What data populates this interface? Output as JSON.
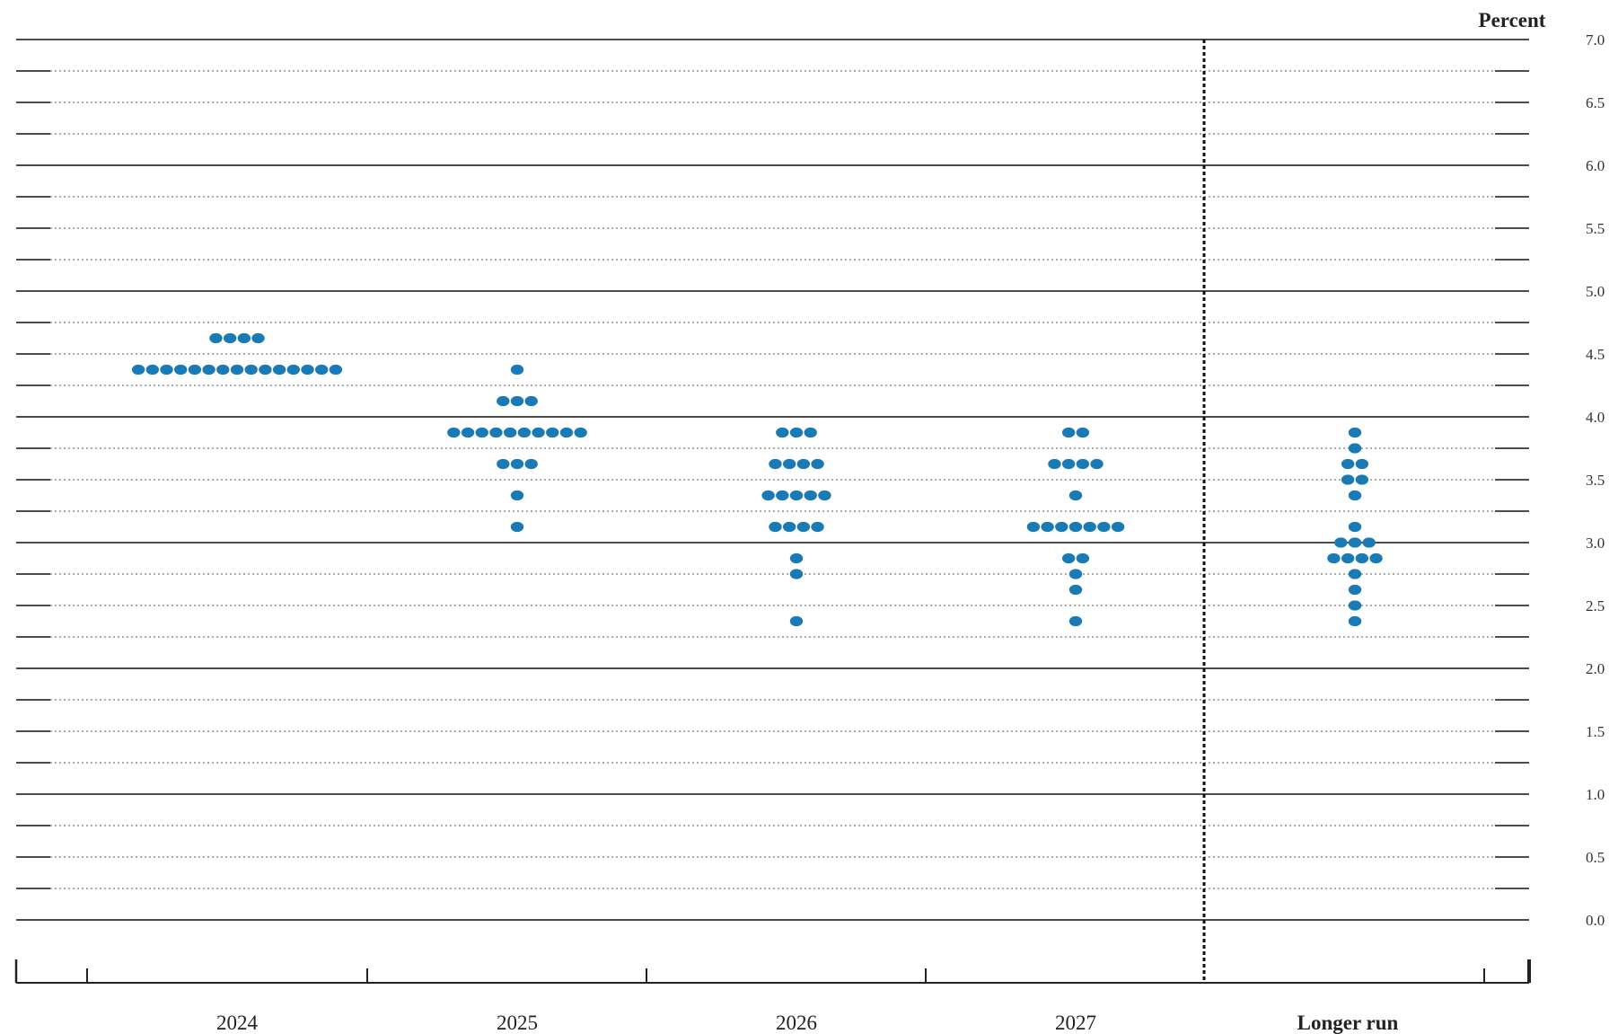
{
  "chart_data": {
    "type": "scatter",
    "subtype": "dot-plot",
    "unit_label": "Percent",
    "ylim": [
      0,
      7
    ],
    "y_ticks": [
      "7.0",
      "6.5",
      "6.0",
      "5.5",
      "5.0",
      "4.5",
      "4.0",
      "3.5",
      "3.0",
      "2.5",
      "2.0",
      "1.5",
      "1.0",
      "0.5",
      "0.0"
    ],
    "categories": [
      "2024",
      "2025",
      "2026",
      "2027",
      "Longer run"
    ],
    "dot_color": "#1a7ab5",
    "gridlines": "solid at whole percents, dotted every 0.25",
    "columns": [
      {
        "category": "2024",
        "dots": [
          {
            "value": 4.625,
            "count": 4
          },
          {
            "value": 4.375,
            "count": 15
          }
        ]
      },
      {
        "category": "2025",
        "dots": [
          {
            "value": 4.375,
            "count": 1
          },
          {
            "value": 4.125,
            "count": 3
          },
          {
            "value": 3.875,
            "count": 10
          },
          {
            "value": 3.625,
            "count": 3
          },
          {
            "value": 3.375,
            "count": 1
          },
          {
            "value": 3.125,
            "count": 1
          }
        ]
      },
      {
        "category": "2026",
        "dots": [
          {
            "value": 3.875,
            "count": 3
          },
          {
            "value": 3.625,
            "count": 4
          },
          {
            "value": 3.375,
            "count": 5
          },
          {
            "value": 3.125,
            "count": 4
          },
          {
            "value": 2.875,
            "count": 1
          },
          {
            "value": 2.75,
            "count": 1
          },
          {
            "value": 2.375,
            "count": 1
          }
        ]
      },
      {
        "category": "2027",
        "dots": [
          {
            "value": 3.875,
            "count": 2
          },
          {
            "value": 3.625,
            "count": 4
          },
          {
            "value": 3.375,
            "count": 1
          },
          {
            "value": 3.125,
            "count": 7
          },
          {
            "value": 2.875,
            "count": 2
          },
          {
            "value": 2.75,
            "count": 1
          },
          {
            "value": 2.625,
            "count": 1
          },
          {
            "value": 2.375,
            "count": 1
          }
        ]
      },
      {
        "category": "Longer run",
        "dots": [
          {
            "value": 3.875,
            "count": 1
          },
          {
            "value": 3.75,
            "count": 1
          },
          {
            "value": 3.625,
            "count": 2
          },
          {
            "value": 3.5,
            "count": 2
          },
          {
            "value": 3.375,
            "count": 1
          },
          {
            "value": 3.125,
            "count": 1
          },
          {
            "value": 3.0,
            "count": 3
          },
          {
            "value": 2.875,
            "count": 4
          },
          {
            "value": 2.75,
            "count": 1
          },
          {
            "value": 2.625,
            "count": 1
          },
          {
            "value": 2.5,
            "count": 1
          },
          {
            "value": 2.375,
            "count": 1
          }
        ]
      }
    ]
  }
}
